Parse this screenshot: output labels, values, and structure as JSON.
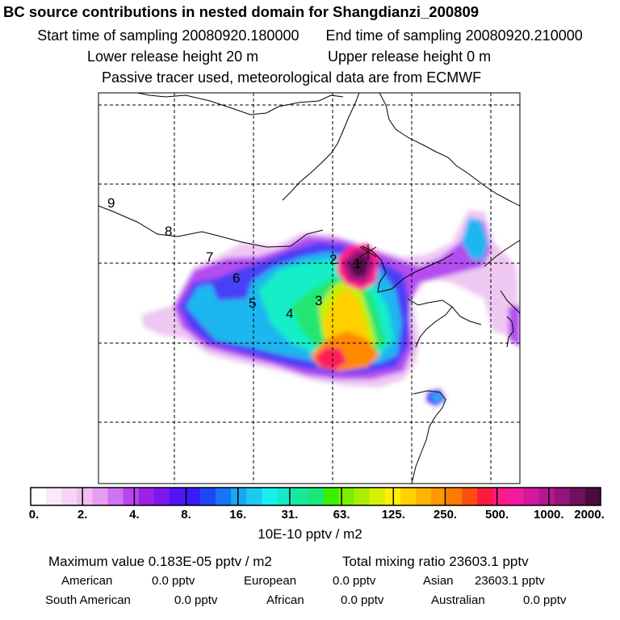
{
  "header": {
    "title": "BC  source contributions in nested domain for Shangdianzi_200809",
    "start_time": "Start time of sampling 20080920.180000",
    "end_time": "End time of sampling 20080920.210000",
    "lower_release": "Lower release height   20 m",
    "upper_release": "Upper release height    0 m",
    "passive": "Passive tracer used, meteorological data are from ECMWF"
  },
  "map": {
    "source_labels": [
      "1",
      "2",
      "3",
      "4",
      "5",
      "6",
      "7",
      "8",
      "9"
    ],
    "receptor_marker": "star-receptor-marker"
  },
  "colorbar": {
    "colors": [
      "#ffffff",
      "#fbe9fb",
      "#f6d4f6",
      "#efbdf0",
      "#e49ff0",
      "#cf73f0",
      "#b845f0",
      "#9e21e8",
      "#7e16f0",
      "#5314f5",
      "#3a1af8",
      "#1b47f6",
      "#1675f5",
      "#18a8f2",
      "#1dc9f0",
      "#16f0ee",
      "#17e8c5",
      "#16e89c",
      "#1ae67a",
      "#39f000",
      "#7aee00",
      "#aaef00",
      "#d8f000",
      "#ffef00",
      "#ffd200",
      "#ffb400",
      "#ff9800",
      "#ff7a00",
      "#ff4d10",
      "#ff1a3d",
      "#ff1a8a",
      "#f21a9e",
      "#d4189e",
      "#b8168e",
      "#95147c",
      "#6e1260",
      "#4a0c40"
    ],
    "tick_labels": [
      "0.",
      "2.",
      "4.",
      "8.",
      "16.",
      "31.",
      "63.",
      "125.",
      "250.",
      "500.",
      "1000.",
      "2000."
    ],
    "units": "10E-10 pptv / m2"
  },
  "stats": {
    "max_value": "Maximum value  0.183E-05 pptv / m2",
    "total_mixing": "Total mixing ratio    23603.1 pptv",
    "regions": [
      {
        "name": "American",
        "value": "0.0 pptv"
      },
      {
        "name": "European",
        "value": "0.0 pptv"
      },
      {
        "name": "Asian",
        "value": "23603.1 pptv"
      },
      {
        "name": "South American",
        "value": "0.0 pptv"
      },
      {
        "name": "African",
        "value": "0.0 pptv"
      },
      {
        "name": "Australian",
        "value": "0.0 pptv"
      }
    ]
  }
}
